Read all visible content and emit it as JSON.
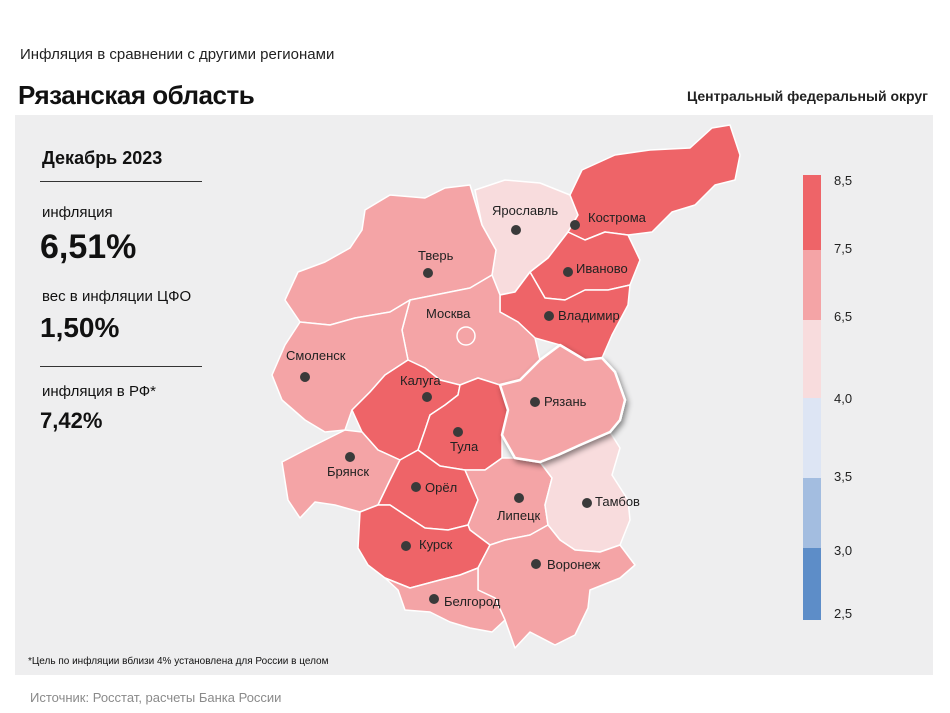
{
  "header": {
    "subtitle": "Инфляция в сравнении с другими регионами",
    "title": "Рязанская область",
    "district": "Центральный федеральный округ"
  },
  "stats": {
    "period": "Декабрь 2023",
    "inflation_label": "инфляция",
    "inflation_value": "6,51%",
    "weight_label": "вес в инфляции ЦФО",
    "weight_value": "1,50%",
    "rf_label": "инфляция в РФ*",
    "rf_value": "7,42%"
  },
  "footnote": "*Цель по инфляции вблизи 4% установлена для России в целом",
  "source": "Источник: Росстат, расчеты Банка России",
  "legend": {
    "ticks": [
      "8,5",
      "7,5",
      "6,5",
      "4,0",
      "3,5",
      "3,0",
      "2,5"
    ],
    "colors": [
      "#ee6468",
      "#f4a4a6",
      "#f8dcdd",
      "#dde5f4",
      "#a3bde0",
      "#5d8dc8"
    ]
  },
  "regions": [
    {
      "name": "Ярославль",
      "color": "#f8dcdd"
    },
    {
      "name": "Кострома",
      "color": "#ee6468"
    },
    {
      "name": "Иваново",
      "color": "#ee6468"
    },
    {
      "name": "Владимир",
      "color": "#ee6468"
    },
    {
      "name": "Тверь",
      "color": "#f4a4a6"
    },
    {
      "name": "Москва",
      "color": "#f4a4a6"
    },
    {
      "name": "Смоленск",
      "color": "#f4a4a6"
    },
    {
      "name": "Калуга",
      "color": "#ee6468"
    },
    {
      "name": "Тула",
      "color": "#ee6468"
    },
    {
      "name": "Рязань",
      "color": "#f4a4a6",
      "highlighted": true
    },
    {
      "name": "Брянск",
      "color": "#f4a4a6"
    },
    {
      "name": "Орёл",
      "color": "#ee6468"
    },
    {
      "name": "Липецк",
      "color": "#f4a4a6"
    },
    {
      "name": "Тамбов",
      "color": "#f8dcdd"
    },
    {
      "name": "Курск",
      "color": "#ee6468"
    },
    {
      "name": "Воронеж",
      "color": "#f4a4a6"
    },
    {
      "name": "Белгород",
      "color": "#f4a4a6"
    }
  ]
}
